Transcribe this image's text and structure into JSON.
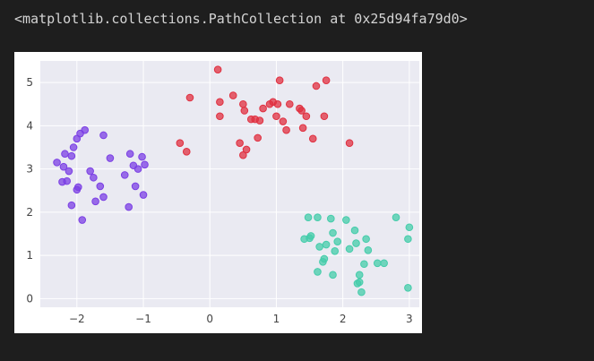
{
  "cell_output": "<matplotlib.collections.PathCollection at 0x25d94fa79d0>",
  "chart_data": {
    "type": "scatter",
    "title": "",
    "xlabel": "",
    "ylabel": "",
    "xlim": [
      -2.55,
      3.15
    ],
    "ylim": [
      -0.2,
      5.5
    ],
    "xticks": [
      -2,
      -1,
      0,
      1,
      2,
      3
    ],
    "yticks": [
      0,
      1,
      2,
      3,
      4,
      5
    ],
    "xtick_labels": [
      "−2",
      "−1",
      "0",
      "1",
      "2",
      "3"
    ],
    "ytick_labels": [
      "0",
      "1",
      "2",
      "3",
      "4",
      "5"
    ],
    "grid": true,
    "background": "#eaeaf2",
    "series": [
      {
        "color": "#7b3fe4",
        "points": [
          [
            -2.3,
            3.15
          ],
          [
            -2.2,
            3.05
          ],
          [
            -2.18,
            3.35
          ],
          [
            -2.12,
            2.95
          ],
          [
            -2.08,
            3.3
          ],
          [
            -2.22,
            2.7
          ],
          [
            -2.15,
            2.72
          ],
          [
            -2.05,
            3.5
          ],
          [
            -2.0,
            3.7
          ],
          [
            -1.95,
            3.82
          ],
          [
            -1.88,
            3.9
          ],
          [
            -1.8,
            2.95
          ],
          [
            -1.75,
            2.8
          ],
          [
            -1.72,
            2.25
          ],
          [
            -1.65,
            2.6
          ],
          [
            -1.6,
            2.35
          ],
          [
            -1.6,
            3.78
          ],
          [
            -1.5,
            3.25
          ],
          [
            -1.98,
            2.58
          ],
          [
            -2.0,
            2.52
          ],
          [
            -2.08,
            2.16
          ],
          [
            -1.92,
            1.82
          ],
          [
            -1.28,
            2.86
          ],
          [
            -1.22,
            2.12
          ],
          [
            -1.2,
            3.35
          ],
          [
            -1.15,
            3.08
          ],
          [
            -1.12,
            2.6
          ],
          [
            -1.08,
            3.0
          ],
          [
            -1.02,
            3.28
          ],
          [
            -0.98,
            3.1
          ],
          [
            -1.0,
            2.4
          ]
        ]
      },
      {
        "color": "#e03040",
        "points": [
          [
            -0.45,
            3.6
          ],
          [
            -0.35,
            3.4
          ],
          [
            -0.3,
            4.65
          ],
          [
            0.12,
            5.3
          ],
          [
            0.15,
            4.55
          ],
          [
            0.15,
            4.22
          ],
          [
            0.35,
            4.7
          ],
          [
            0.45,
            3.6
          ],
          [
            0.5,
            3.32
          ],
          [
            0.5,
            4.5
          ],
          [
            0.52,
            4.35
          ],
          [
            0.55,
            3.45
          ],
          [
            0.62,
            4.15
          ],
          [
            0.68,
            4.15
          ],
          [
            0.72,
            3.72
          ],
          [
            0.75,
            4.12
          ],
          [
            0.8,
            4.4
          ],
          [
            0.9,
            4.5
          ],
          [
            0.95,
            4.55
          ],
          [
            1.0,
            4.22
          ],
          [
            1.02,
            4.5
          ],
          [
            1.05,
            5.05
          ],
          [
            1.1,
            4.1
          ],
          [
            1.15,
            3.9
          ],
          [
            1.2,
            4.5
          ],
          [
            1.35,
            4.4
          ],
          [
            1.38,
            4.35
          ],
          [
            1.4,
            3.95
          ],
          [
            1.45,
            4.22
          ],
          [
            1.55,
            3.7
          ],
          [
            1.6,
            4.92
          ],
          [
            1.72,
            4.22
          ],
          [
            1.75,
            5.05
          ],
          [
            2.1,
            3.6
          ]
        ]
      },
      {
        "color": "#44ccaa",
        "points": [
          [
            1.42,
            1.38
          ],
          [
            1.48,
            1.88
          ],
          [
            1.5,
            1.4
          ],
          [
            1.52,
            1.45
          ],
          [
            1.62,
            1.88
          ],
          [
            1.62,
            0.62
          ],
          [
            1.65,
            1.2
          ],
          [
            1.7,
            0.85
          ],
          [
            1.72,
            0.92
          ],
          [
            1.75,
            1.25
          ],
          [
            1.82,
            1.85
          ],
          [
            1.85,
            1.52
          ],
          [
            1.85,
            0.55
          ],
          [
            1.88,
            1.1
          ],
          [
            1.92,
            1.32
          ],
          [
            2.05,
            1.82
          ],
          [
            2.1,
            1.15
          ],
          [
            2.18,
            1.58
          ],
          [
            2.2,
            1.28
          ],
          [
            2.22,
            0.35
          ],
          [
            2.25,
            0.38
          ],
          [
            2.25,
            0.55
          ],
          [
            2.28,
            0.15
          ],
          [
            2.32,
            0.8
          ],
          [
            2.35,
            1.38
          ],
          [
            2.38,
            1.12
          ],
          [
            2.52,
            0.82
          ],
          [
            2.62,
            0.82
          ],
          [
            2.8,
            1.88
          ],
          [
            2.98,
            1.38
          ],
          [
            3.0,
            1.65
          ],
          [
            2.98,
            0.25
          ]
        ]
      }
    ]
  }
}
